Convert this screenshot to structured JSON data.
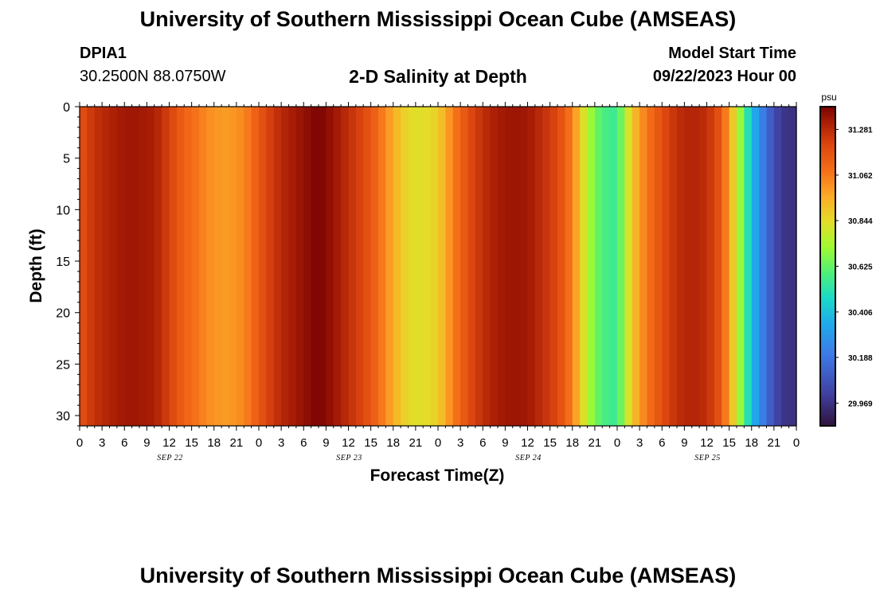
{
  "header": {
    "title": "University of Southern Mississippi Ocean Cube (AMSEAS)",
    "station": "DPIA1",
    "coords": "30.2500N  88.0750W",
    "subtitle": "2-D Salinity at Depth",
    "model_label": "Model Start Time",
    "model_time": "09/22/2023 Hour 00"
  },
  "footer": {
    "title": "University of Southern Mississippi Ocean Cube (AMSEAS)"
  },
  "chart_data": {
    "type": "heatmap",
    "title": "2-D Salinity at Depth",
    "xlabel": "Forecast Time(Z)",
    "ylabel": "Depth (ft)",
    "y_ticks": [
      0,
      5,
      10,
      15,
      20,
      25,
      30
    ],
    "ylim": [
      31,
      0
    ],
    "x_tick_labels": [
      "0",
      "3",
      "6",
      "9",
      "12",
      "15",
      "18",
      "21",
      "0",
      "3",
      "6",
      "9",
      "12",
      "15",
      "18",
      "21",
      "0",
      "3",
      "6",
      "9",
      "12",
      "15",
      "18",
      "21",
      "0",
      "3",
      "6",
      "9",
      "12",
      "15",
      "18",
      "21",
      "0"
    ],
    "x_range_hours": [
      0,
      96
    ],
    "day_labels": [
      {
        "label": "SEP 22",
        "hour": 12
      },
      {
        "label": "SEP 23",
        "hour": 36
      },
      {
        "label": "SEP 24",
        "hour": 60
      },
      {
        "label": "SEP 25",
        "hour": 84
      }
    ],
    "colorbar": {
      "unit": "psu",
      "ticks": [
        "31.281",
        "31.062",
        "30.844",
        "30.625",
        "30.406",
        "30.188",
        "29.969"
      ],
      "tick_values": [
        31.281,
        31.062,
        30.844,
        30.625,
        30.406,
        30.188,
        29.969
      ],
      "range": [
        29.86,
        31.39
      ]
    },
    "salinity_by_hour": [
      {
        "hour": 0,
        "psu": 31.17
      },
      {
        "hour": 2,
        "psu": 31.26
      },
      {
        "hour": 4,
        "psu": 31.3
      },
      {
        "hour": 6,
        "psu": 31.33
      },
      {
        "hour": 8,
        "psu": 31.33
      },
      {
        "hour": 10,
        "psu": 31.31
      },
      {
        "hour": 12,
        "psu": 31.22
      },
      {
        "hour": 14,
        "psu": 31.12
      },
      {
        "hour": 16,
        "psu": 31.06
      },
      {
        "hour": 18,
        "psu": 31.0
      },
      {
        "hour": 20,
        "psu": 30.99
      },
      {
        "hour": 22,
        "psu": 31.03
      },
      {
        "hour": 24,
        "psu": 31.15
      },
      {
        "hour": 26,
        "psu": 31.25
      },
      {
        "hour": 28,
        "psu": 31.31
      },
      {
        "hour": 30,
        "psu": 31.35
      },
      {
        "hour": 32,
        "psu": 31.39
      },
      {
        "hour": 34,
        "psu": 31.34
      },
      {
        "hour": 36,
        "psu": 31.27
      },
      {
        "hour": 38,
        "psu": 31.2
      },
      {
        "hour": 40,
        "psu": 31.1
      },
      {
        "hour": 42,
        "psu": 30.95
      },
      {
        "hour": 44,
        "psu": 30.84
      },
      {
        "hour": 46,
        "psu": 30.83
      },
      {
        "hour": 48,
        "psu": 30.87
      },
      {
        "hour": 50,
        "psu": 31.05
      },
      {
        "hour": 52,
        "psu": 31.18
      },
      {
        "hour": 54,
        "psu": 31.27
      },
      {
        "hour": 56,
        "psu": 31.32
      },
      {
        "hour": 58,
        "psu": 31.34
      },
      {
        "hour": 60,
        "psu": 31.33
      },
      {
        "hour": 62,
        "psu": 31.27
      },
      {
        "hour": 64,
        "psu": 31.2
      },
      {
        "hour": 66,
        "psu": 31.05
      },
      {
        "hour": 68,
        "psu": 30.75
      },
      {
        "hour": 70,
        "psu": 30.58
      },
      {
        "hour": 72,
        "psu": 30.55
      },
      {
        "hour": 74,
        "psu": 30.9
      },
      {
        "hour": 76,
        "psu": 31.07
      },
      {
        "hour": 78,
        "psu": 31.18
      },
      {
        "hour": 80,
        "psu": 31.27
      },
      {
        "hour": 82,
        "psu": 31.3
      },
      {
        "hour": 84,
        "psu": 31.27
      },
      {
        "hour": 86,
        "psu": 31.15
      },
      {
        "hour": 88,
        "psu": 30.8
      },
      {
        "hour": 90,
        "psu": 30.4
      },
      {
        "hour": 92,
        "psu": 30.15
      },
      {
        "hour": 94,
        "psu": 29.98
      },
      {
        "hour": 96,
        "psu": 29.96
      }
    ]
  }
}
